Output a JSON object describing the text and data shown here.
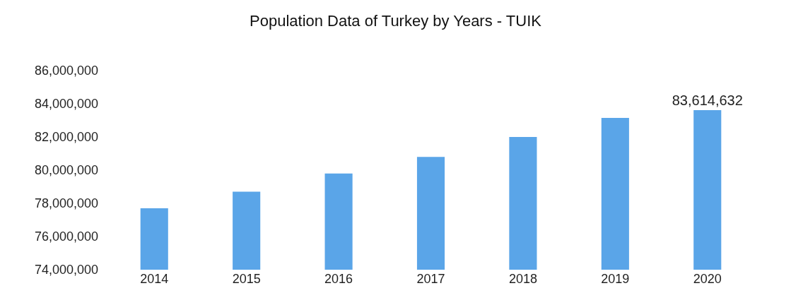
{
  "chart_data": {
    "type": "bar",
    "title": "Population Data of Turkey by Years - TUIK",
    "categories": [
      "2014",
      "2015",
      "2016",
      "2017",
      "2018",
      "2019",
      "2020"
    ],
    "values": [
      77700000,
      78700000,
      79800000,
      80800000,
      82000000,
      83150000,
      83614632
    ],
    "value_labels": [
      null,
      null,
      null,
      null,
      null,
      null,
      "83,614,632"
    ],
    "color": "#5aa5e8",
    "ylim": [
      74000000,
      86000000
    ],
    "yticks": [
      {
        "value": 74000000,
        "label": "74,000,000"
      },
      {
        "value": 76000000,
        "label": "76,000,000"
      },
      {
        "value": 78000000,
        "label": "78,000,000"
      },
      {
        "value": 80000000,
        "label": "80,000,000"
      },
      {
        "value": 82000000,
        "label": "82,000,000"
      },
      {
        "value": 84000000,
        "label": "84,000,000"
      },
      {
        "value": 86000000,
        "label": "86,000,000"
      }
    ],
    "grid": false
  }
}
